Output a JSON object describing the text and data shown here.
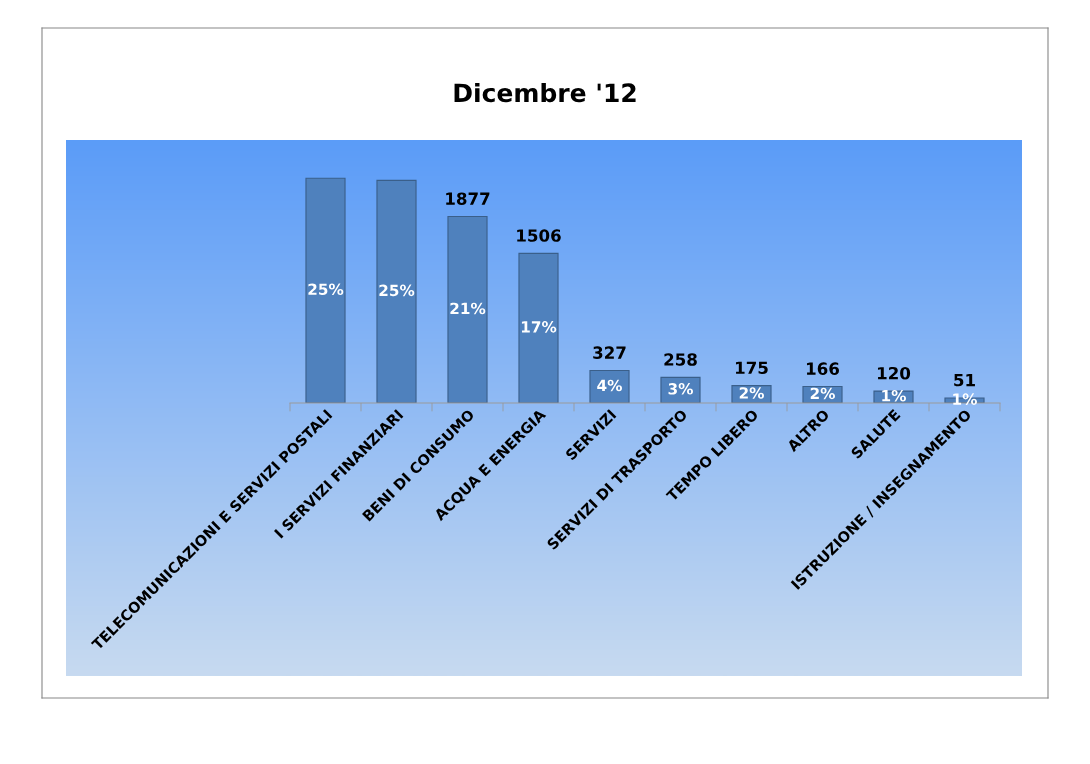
{
  "chart_data": {
    "type": "bar",
    "title": "Dicembre '12",
    "categories": [
      "TELECOMUNICAZIONI E SERVIZI POSTALI",
      "I SERVIZI FINANZIARI",
      "BENI DI CONSUMO",
      "ACQUA E ENERGIA",
      "SERVIZI",
      "SERVIZI DI TRASPORTO",
      "TEMPO LIBERO",
      "ALTRO",
      "SALUTE",
      "ISTRUZIONE / INSEGNAMENTO"
    ],
    "values": [
      2263,
      2241,
      1877,
      1506,
      327,
      258,
      175,
      166,
      120,
      51
    ],
    "value_labels": [
      null,
      null,
      "1877",
      "1506",
      "327",
      "258",
      "175",
      "166",
      "120",
      "51"
    ],
    "color": "#4f81bd",
    "annotations": [
      "25%",
      "25%",
      "21%",
      "17%",
      "4%",
      "3%",
      "2%",
      "2%",
      "1%",
      "1%"
    ],
    "grid": false,
    "legend": false
  }
}
